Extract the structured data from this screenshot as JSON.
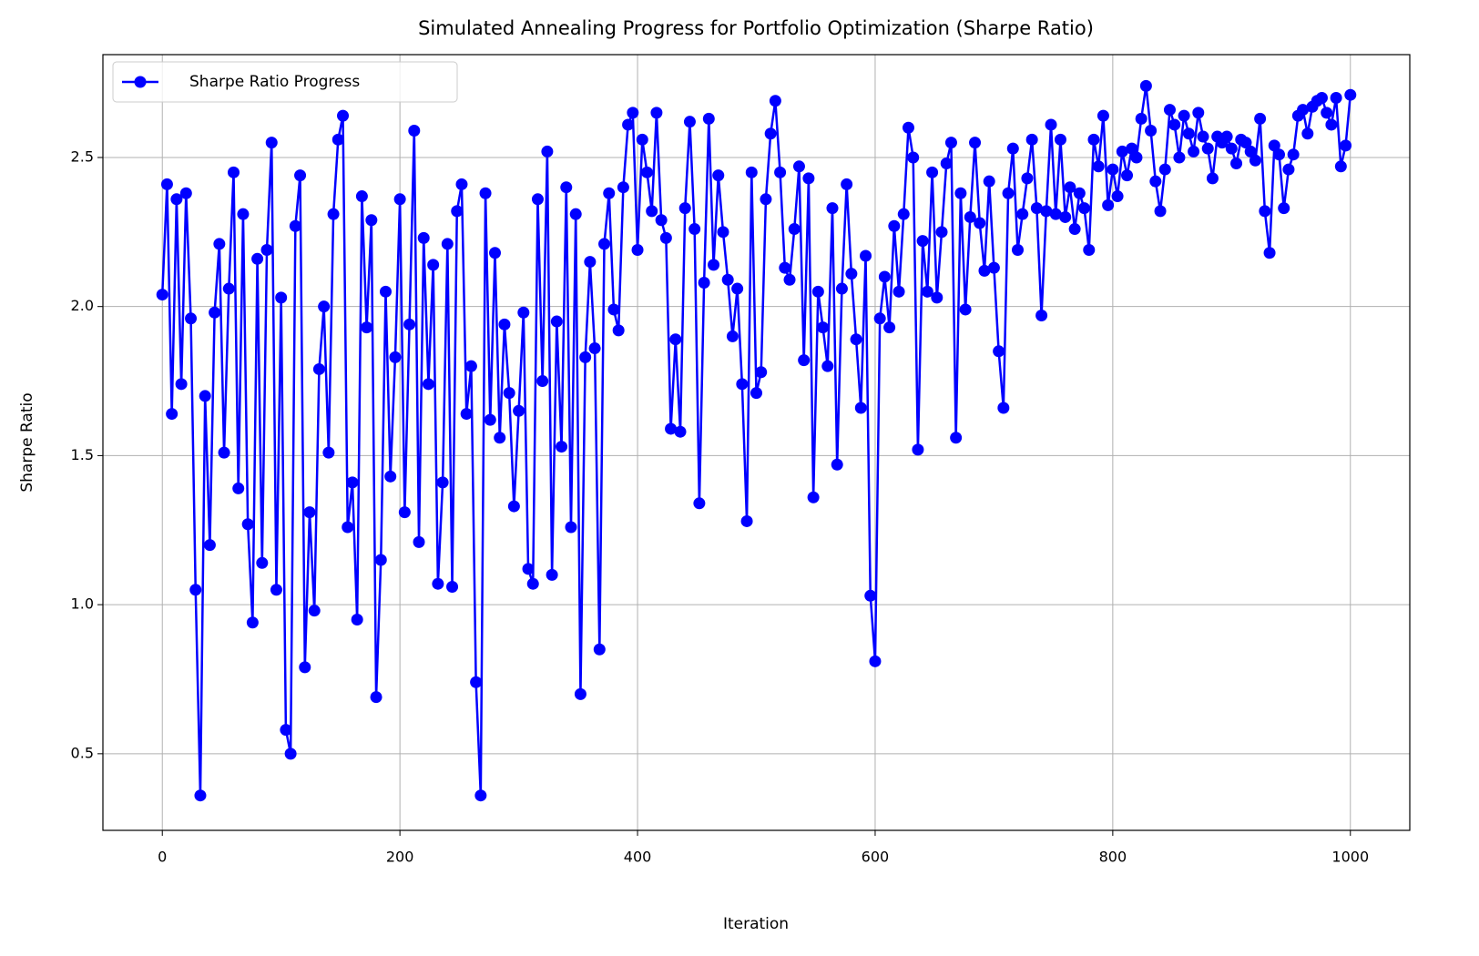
{
  "chart_data": {
    "type": "line",
    "title": "Simulated Annealing Progress for Portfolio Optimization (Sharpe Ratio)",
    "x_label": "Iteration",
    "y_label": "Sharpe Ratio",
    "x": [
      0,
      4,
      8,
      12,
      16,
      20,
      24,
      28,
      32,
      36,
      40,
      44,
      48,
      52,
      56,
      60,
      64,
      68,
      72,
      76,
      80,
      84,
      88,
      92,
      96,
      100,
      104,
      108,
      112,
      116,
      120,
      124,
      128,
      132,
      136,
      140,
      144,
      148,
      152,
      156,
      160,
      164,
      168,
      172,
      176,
      180,
      184,
      188,
      192,
      196,
      200,
      204,
      208,
      212,
      216,
      220,
      224,
      228,
      232,
      236,
      240,
      244,
      248,
      252,
      256,
      260,
      264,
      268,
      272,
      276,
      280,
      284,
      288,
      292,
      296,
      300,
      304,
      308,
      312,
      316,
      320,
      324,
      328,
      332,
      336,
      340,
      344,
      348,
      352,
      356,
      360,
      364,
      368,
      372,
      376,
      380,
      384,
      388,
      392,
      396,
      400,
      404,
      408,
      412,
      416,
      420,
      424,
      428,
      432,
      436,
      440,
      444,
      448,
      452,
      456,
      460,
      464,
      468,
      472,
      476,
      480,
      484,
      488,
      492,
      496,
      500,
      504,
      508,
      512,
      516,
      520,
      524,
      528,
      532,
      536,
      540,
      544,
      548,
      552,
      556,
      560,
      564,
      568,
      572,
      576,
      580,
      584,
      588,
      592,
      596,
      600,
      604,
      608,
      612,
      616,
      620,
      624,
      628,
      632,
      636,
      640,
      644,
      648,
      652,
      656,
      660,
      664,
      668,
      672,
      676,
      680,
      684,
      688,
      692,
      696,
      700,
      704,
      708,
      712,
      716,
      720,
      724,
      728,
      732,
      736,
      740,
      744,
      748,
      752,
      756,
      760,
      764,
      768,
      772,
      776,
      780,
      784,
      788,
      792,
      796,
      800,
      804,
      808,
      812,
      816,
      820,
      824,
      828,
      832,
      836,
      840,
      844,
      848,
      852,
      856,
      860,
      864,
      868,
      872,
      876,
      880,
      884,
      888,
      892,
      896,
      900,
      904,
      908,
      912,
      916,
      920,
      924,
      928,
      932,
      936,
      940,
      944,
      948,
      952,
      956,
      960,
      964,
      968,
      972,
      976,
      980,
      984,
      988,
      992,
      996,
      1000
    ],
    "series": [
      {
        "name": "Sharpe Ratio Progress",
        "color": "#0000ff",
        "values": [
          2.04,
          2.41,
          1.64,
          2.36,
          1.74,
          2.38,
          1.96,
          1.05,
          0.36,
          1.7,
          1.2,
          1.98,
          2.21,
          1.51,
          2.06,
          2.45,
          1.39,
          2.31,
          1.27,
          0.94,
          2.16,
          1.14,
          2.19,
          2.55,
          1.05,
          2.03,
          0.58,
          0.5,
          2.27,
          2.44,
          0.79,
          1.31,
          0.98,
          1.79,
          2.0,
          1.51,
          2.31,
          2.56,
          2.64,
          1.26,
          1.41,
          0.95,
          2.37,
          1.93,
          2.29,
          0.69,
          1.15,
          2.05,
          1.43,
          1.83,
          2.36,
          1.31,
          1.94,
          2.59,
          1.21,
          2.23,
          1.74,
          2.14,
          1.07,
          1.41,
          2.21,
          1.06,
          2.32,
          2.41,
          1.64,
          1.8,
          0.74,
          0.36,
          2.38,
          1.62,
          2.18,
          1.56,
          1.94,
          1.71,
          1.33,
          1.65,
          1.98,
          1.12,
          1.07,
          2.36,
          1.75,
          2.52,
          1.1,
          1.95,
          1.53,
          2.4,
          1.26,
          2.31,
          0.7,
          1.83,
          2.15,
          1.86,
          0.85,
          2.21,
          2.38,
          1.99,
          1.92,
          2.4,
          2.61,
          2.65,
          2.19,
          2.56,
          2.45,
          2.32,
          2.65,
          2.29,
          2.23,
          1.59,
          1.89,
          1.58,
          2.33,
          2.62,
          2.26,
          1.34,
          2.08,
          2.63,
          2.14,
          2.44,
          2.25,
          2.09,
          1.9,
          2.06,
          1.74,
          1.28,
          2.45,
          1.71,
          1.78,
          2.36,
          2.58,
          2.69,
          2.45,
          2.13,
          2.09,
          2.26,
          2.47,
          1.82,
          2.43,
          1.36,
          2.05,
          1.93,
          1.8,
          2.33,
          1.47,
          2.06,
          2.41,
          2.11,
          1.89,
          1.66,
          2.17,
          1.03,
          0.81,
          1.96,
          2.1,
          1.93,
          2.27,
          2.05,
          2.31,
          2.6,
          2.5,
          1.52,
          2.22,
          2.05,
          2.45,
          2.03,
          2.25,
          2.48,
          2.55,
          1.56,
          2.38,
          1.99,
          2.3,
          2.55,
          2.28,
          2.12,
          2.42,
          2.13,
          1.85,
          1.66,
          2.38,
          2.53,
          2.19,
          2.31,
          2.43,
          2.56,
          2.33,
          1.97,
          2.32,
          2.61,
          2.31,
          2.56,
          2.3,
          2.4,
          2.26,
          2.38,
          2.33,
          2.19,
          2.56,
          2.47,
          2.64,
          2.34,
          2.46,
          2.37,
          2.52,
          2.44,
          2.53,
          2.5,
          2.63,
          2.74,
          2.59,
          2.42,
          2.32,
          2.46,
          2.66,
          2.61,
          2.5,
          2.64,
          2.58,
          2.52,
          2.65,
          2.57,
          2.53,
          2.43,
          2.57,
          2.55,
          2.57,
          2.53,
          2.48,
          2.56,
          2.55,
          2.52,
          2.49,
          2.63,
          2.32,
          2.18,
          2.54,
          2.51,
          2.33,
          2.46,
          2.51,
          2.64,
          2.66,
          2.58,
          2.67,
          2.69,
          2.7,
          2.65,
          2.61,
          2.7,
          2.47,
          2.54,
          2.71
        ]
      }
    ],
    "xlim": [
      -50,
      1050
    ],
    "ylim": [
      0.243,
      2.845
    ],
    "xticks": [
      0,
      200,
      400,
      600,
      800,
      1000
    ],
    "yticks": [
      0.5,
      {
        "value": 1,
        "label": "1.0"
      },
      1.5,
      {
        "value": 2,
        "label": "2.0"
      },
      2.5
    ],
    "grid": true,
    "legend": "upper left",
    "marker": "circle"
  }
}
